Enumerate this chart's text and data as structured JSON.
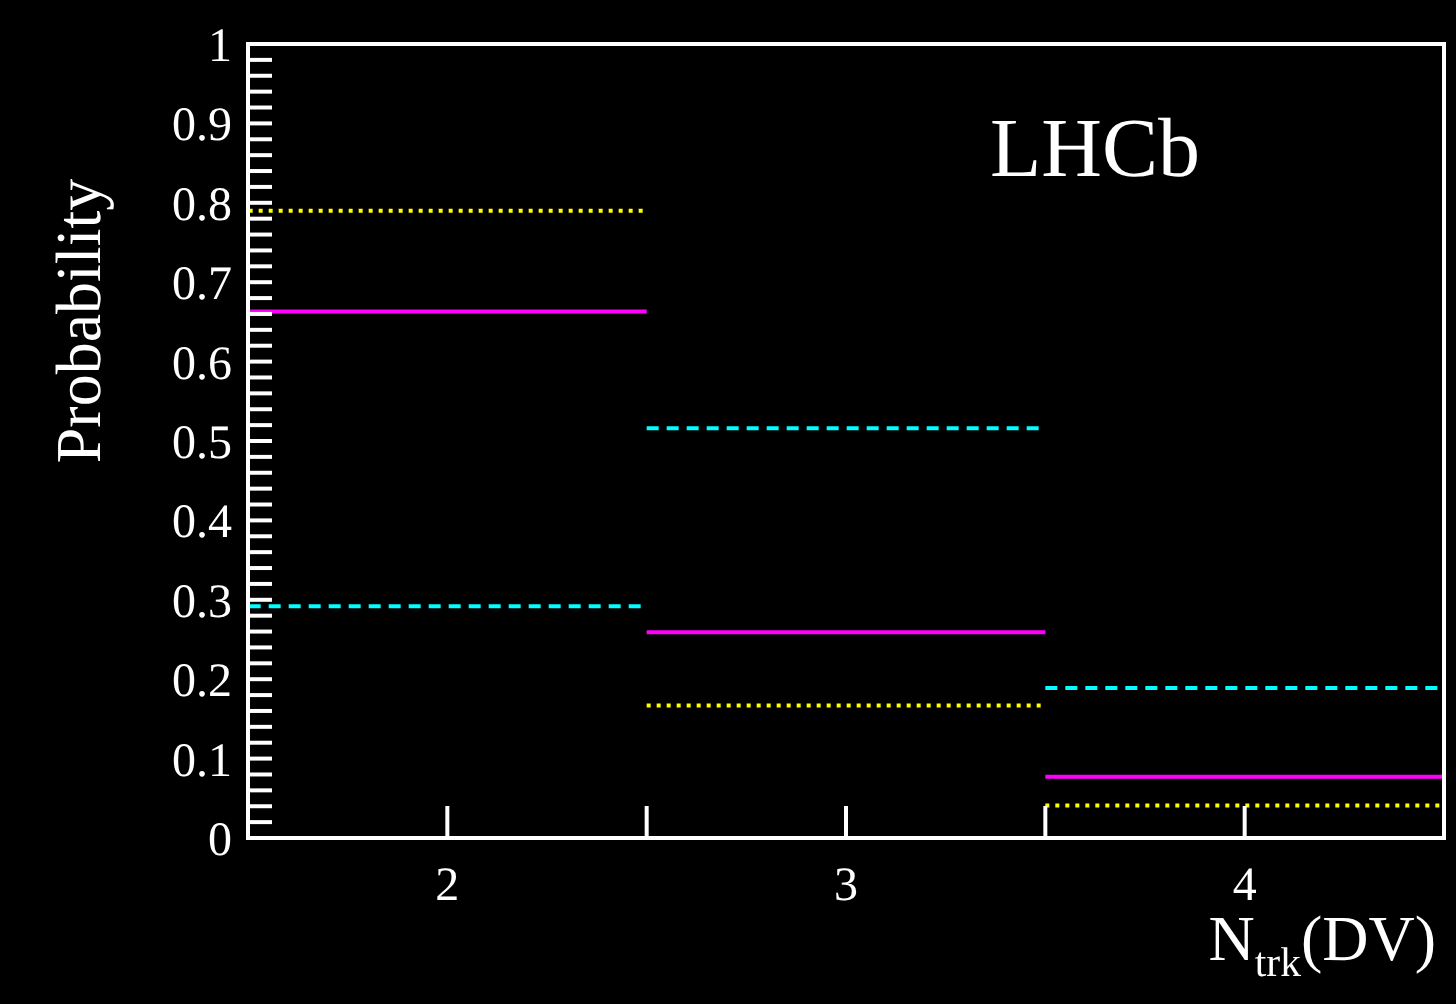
{
  "chart_data": {
    "type": "step",
    "xlabel": "N$_{trk}$(DV)",
    "ylabel": "Probability",
    "annotations": [
      "LHCb"
    ],
    "x": [
      2,
      3,
      4
    ],
    "series": [
      {
        "color": "#ffff00",
        "line_style": "dotted",
        "values": [
          0.79,
          0.167,
          0.041
        ]
      },
      {
        "color": "#ff00ff",
        "line_style": "solid",
        "values": [
          0.663,
          0.259,
          0.077
        ]
      },
      {
        "color": "#00ffff",
        "line_style": "dashed",
        "values": [
          0.292,
          0.516,
          0.189
        ]
      }
    ],
    "xlim": [
      1.5,
      4.5
    ],
    "xticks": [
      2,
      {
        "value": 2.5,
        "label": null
      },
      3,
      {
        "value": 3.5,
        "label": null
      },
      4
    ],
    "ylim": [
      0,
      1
    ],
    "yticks": [
      0,
      {
        "value": 0.02,
        "label": null
      },
      {
        "value": 0.04,
        "label": null
      },
      {
        "value": 0.06,
        "label": null
      },
      {
        "value": 0.08,
        "label": null
      },
      0.1,
      {
        "value": 0.12,
        "label": null
      },
      {
        "value": 0.14,
        "label": null
      },
      {
        "value": 0.16,
        "label": null
      },
      {
        "value": 0.18,
        "label": null
      },
      0.2,
      {
        "value": 0.22,
        "label": null
      },
      {
        "value": 0.24,
        "label": null
      },
      {
        "value": 0.26,
        "label": null
      },
      {
        "value": 0.28,
        "label": null
      },
      0.3,
      {
        "value": 0.32,
        "label": null
      },
      {
        "value": 0.34,
        "label": null
      },
      {
        "value": 0.36,
        "label": null
      },
      {
        "value": 0.38,
        "label": null
      },
      0.4,
      {
        "value": 0.42,
        "label": null
      },
      {
        "value": 0.44,
        "label": null
      },
      {
        "value": 0.46,
        "label": null
      },
      {
        "value": 0.48,
        "label": null
      },
      0.5,
      {
        "value": 0.52,
        "label": null
      },
      {
        "value": 0.54,
        "label": null
      },
      {
        "value": 0.56,
        "label": null
      },
      {
        "value": 0.58,
        "label": null
      },
      0.6,
      {
        "value": 0.62,
        "label": null
      },
      {
        "value": 0.64,
        "label": null
      },
      {
        "value": 0.66,
        "label": null
      },
      {
        "value": 0.68,
        "label": null
      },
      0.7,
      {
        "value": 0.72,
        "label": null
      },
      {
        "value": 0.74,
        "label": null
      },
      {
        "value": 0.76,
        "label": null
      },
      {
        "value": 0.78,
        "label": null
      },
      0.8,
      {
        "value": 0.82,
        "label": null
      },
      {
        "value": 0.84,
        "label": null
      },
      {
        "value": 0.86,
        "label": null
      },
      {
        "value": 0.88,
        "label": null
      },
      0.9,
      {
        "value": 0.92,
        "label": null
      },
      {
        "value": 0.94,
        "label": null
      },
      {
        "value": 0.96,
        "label": null
      },
      {
        "value": 0.98,
        "label": null
      },
      1
    ]
  }
}
